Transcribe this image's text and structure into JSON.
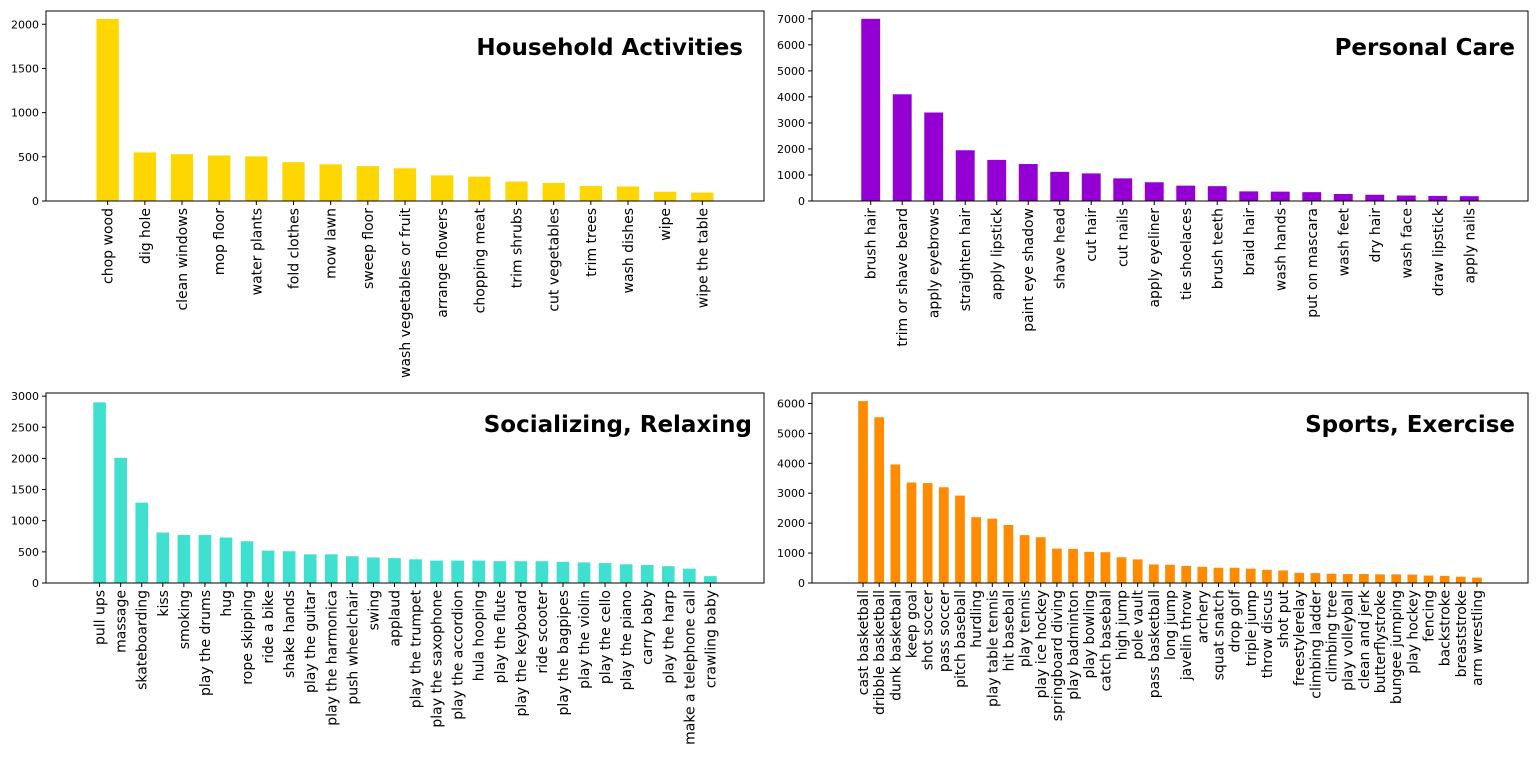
{
  "chart_data": [
    {
      "type": "bar",
      "title": "Household Activities",
      "color": "#FFD700",
      "ylim": [
        0,
        2150
      ],
      "yticks": [
        0,
        500,
        1000,
        1500,
        2000
      ],
      "categories": [
        "chop wood",
        "dig hole",
        "clean windows",
        "mop floor",
        "water plants",
        "fold clothes",
        "mow lawn",
        "sweep floor",
        "wash vegetables or fruit",
        "arrange flowers",
        "chopping meat",
        "trim shrubs",
        "cut vegetables",
        "trim trees",
        "wash dishes",
        "wipe",
        "wipe the table"
      ],
      "values": [
        2060,
        550,
        530,
        515,
        505,
        440,
        415,
        395,
        370,
        290,
        275,
        220,
        205,
        170,
        165,
        105,
        95
      ]
    },
    {
      "type": "bar",
      "title": "Personal Care",
      "color": "#9400D3",
      "ylim": [
        0,
        7300
      ],
      "yticks": [
        0,
        1000,
        2000,
        3000,
        4000,
        5000,
        6000,
        7000
      ],
      "categories": [
        "brush hair",
        "trim or shave beard",
        "apply eyebrows",
        "straighten hair",
        "apply lipstick",
        "paint eye shadow",
        "shave head",
        "cut hair",
        "cut nails",
        "apply eyeliner",
        "tie shoelaces",
        "brush teeth",
        "braid hair",
        "wash hands",
        "put on mascara",
        "wash feet",
        "dry hair",
        "wash face",
        "draw lipstick",
        "apply nails"
      ],
      "values": [
        7000,
        4100,
        3400,
        1950,
        1580,
        1420,
        1120,
        1060,
        870,
        720,
        590,
        570,
        370,
        360,
        340,
        270,
        240,
        210,
        195,
        185
      ]
    },
    {
      "type": "bar",
      "title": "Socializing, Relaxing",
      "color": "#40E0D0",
      "ylim": [
        0,
        3050
      ],
      "yticks": [
        0,
        500,
        1000,
        1500,
        2000,
        2500,
        3000
      ],
      "categories": [
        "pull ups",
        "massage",
        "skateboarding",
        "kiss",
        "smoking",
        "play the drums",
        "hug",
        "rope skipping",
        "ride a bike",
        "shake hands",
        "play the guitar",
        "play the harmonica",
        "push wheelchair",
        "swing",
        "applaud",
        "play the trumpet",
        "play the saxophone",
        "play the accordion",
        "hula hooping",
        "play the flute",
        "play the keyboard",
        "ride scooter",
        "play the bagpipes",
        "play the violin",
        "play the cello",
        "play the piano",
        "carry baby",
        "play the harp",
        "make a telephone call",
        "crawling baby"
      ],
      "values": [
        2900,
        2010,
        1290,
        810,
        770,
        770,
        730,
        670,
        520,
        510,
        460,
        460,
        430,
        410,
        400,
        380,
        360,
        360,
        360,
        350,
        350,
        350,
        340,
        330,
        320,
        300,
        290,
        270,
        230,
        110
      ]
    },
    {
      "type": "bar",
      "title": "Sports, Exercise",
      "color": "#FF8C00",
      "ylim": [
        0,
        6350
      ],
      "yticks": [
        0,
        1000,
        2000,
        3000,
        4000,
        5000,
        6000
      ],
      "categories": [
        "cast basketball",
        "dribble basketball",
        "dunk basketball",
        "keep goal",
        "shot soccer",
        "pass soccer",
        "pitch baseball",
        "hurdling",
        "play table tennis",
        "hit baseball",
        "play tennis",
        "play ice hockey",
        "springboard diving",
        "play badminton",
        "play bowling",
        "catch baseball",
        "high jump",
        "pole vault",
        "pass basketball",
        "long jump",
        "javelin throw",
        "archery",
        "squat snatch",
        "drop golf",
        "triple jump",
        "throw discus",
        "shot put",
        "freestylerelay",
        "climbing ladder",
        "climbing tree",
        "play volleyball",
        "clean and jerk",
        "butterflystroke",
        "bungee jumping",
        "play hockey",
        "fencing",
        "backstroke",
        "breaststroke",
        "arm wrestling"
      ],
      "values": [
        6080,
        5540,
        3960,
        3360,
        3340,
        3200,
        2920,
        2200,
        2150,
        1940,
        1600,
        1530,
        1150,
        1140,
        1040,
        1030,
        860,
        790,
        620,
        610,
        570,
        540,
        510,
        510,
        480,
        440,
        420,
        340,
        330,
        310,
        300,
        300,
        290,
        290,
        280,
        250,
        240,
        210,
        180
      ]
    }
  ]
}
